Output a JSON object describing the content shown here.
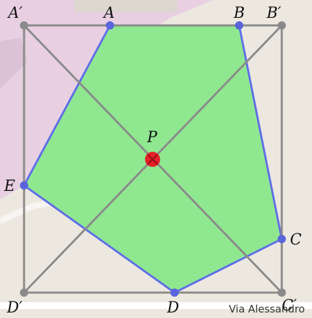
{
  "colors": {
    "map_bg": "#ece8e0",
    "map_pink": "#e8d0e2",
    "polygon_fill": "#8fe88f",
    "polygon_edge": "#5f6ee8",
    "vertex": "#5a64dc",
    "square": "#8a8a8a",
    "center": "#e8202a"
  },
  "labels": {
    "a_prime": "A′",
    "a": "A",
    "b": "B",
    "b_prime": "B′",
    "e": "E",
    "p": "P",
    "c": "C",
    "d_prime": "D′",
    "d": "D",
    "c_prime": "C′"
  },
  "map": {
    "street": "Via Alessandro"
  }
}
